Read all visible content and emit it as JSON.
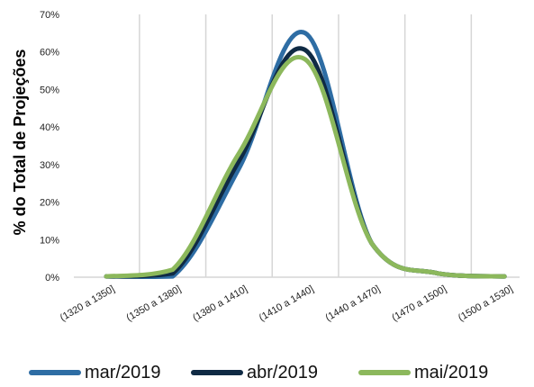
{
  "chart_data": {
    "type": "line",
    "title": "",
    "xlabel": "",
    "ylabel": "% do Total de Projeções",
    "categories": [
      "(1320 a 1350]",
      "(1350 a 1380]",
      "(1380 a 1410]",
      "(1410 a 1440]",
      "(1440 a 1470]",
      "(1470 a 1500]",
      "(1500 a 1530]"
    ],
    "ylim": [
      0,
      70
    ],
    "yticks": [
      "0%",
      "10%",
      "20%",
      "30%",
      "40%",
      "50%",
      "60%",
      "70%"
    ],
    "grid": "vertical",
    "legend_position": "bottom",
    "series": [
      {
        "name": "mar/2019",
        "color": "#2e6da4",
        "values": [
          0.2,
          0.2,
          29.0,
          65.0,
          9.0,
          1.0,
          0.2
        ]
      },
      {
        "name": "abr/2019",
        "color": "#0f2a44",
        "values": [
          0.2,
          1.0,
          31.0,
          60.5,
          9.0,
          1.0,
          0.2
        ]
      },
      {
        "name": "mai/2019",
        "color": "#8cb85c",
        "values": [
          0.2,
          2.0,
          33.0,
          58.0,
          9.0,
          1.0,
          0.2
        ]
      }
    ]
  }
}
